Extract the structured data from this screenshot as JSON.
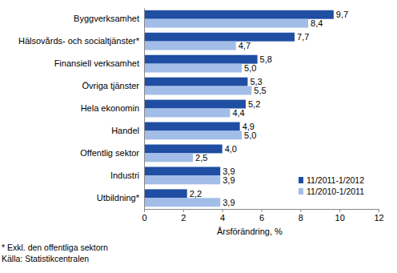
{
  "chart_data": {
    "type": "bar",
    "orientation": "horizontal",
    "categories": [
      "Byggverksamhet",
      "Hälsovårds- och socialtjänster*",
      "Finansiell verksamhet",
      "Övriga tjänster",
      "Hela ekonomin",
      "Handel",
      "Offentlig sektor",
      "Industri",
      "Utbildning*"
    ],
    "series": [
      {
        "name": "11/2011-1/2012",
        "color": "#1f4ea3",
        "values": [
          9.7,
          7.7,
          5.8,
          5.3,
          5.2,
          4.9,
          4.0,
          3.9,
          2.2
        ],
        "value_labels": [
          "9,7",
          "7,7",
          "5,8",
          "5,3",
          "5,2",
          "4,9",
          "4,0",
          "3,9",
          "2,2"
        ]
      },
      {
        "name": "11/2010-1/2011",
        "color": "#a3bde9",
        "values": [
          8.4,
          4.7,
          5.0,
          5.5,
          4.4,
          5.0,
          2.5,
          3.9,
          3.9
        ],
        "value_labels": [
          "8,4",
          "4,7",
          "5,0",
          "5,5",
          "4,4",
          "5,0",
          "2,5",
          "3,9",
          "3,9"
        ]
      }
    ],
    "x_label": "Årsförändring, %",
    "xlim": [
      0,
      12
    ],
    "xticks": [
      0,
      2,
      4,
      6,
      8,
      10,
      12
    ],
    "annotations": [
      "* Exkl. den offentliga sektorn",
      "Källa: Statistikcentralen"
    ],
    "data_labels": true,
    "grid": false,
    "legend": "lower right"
  }
}
